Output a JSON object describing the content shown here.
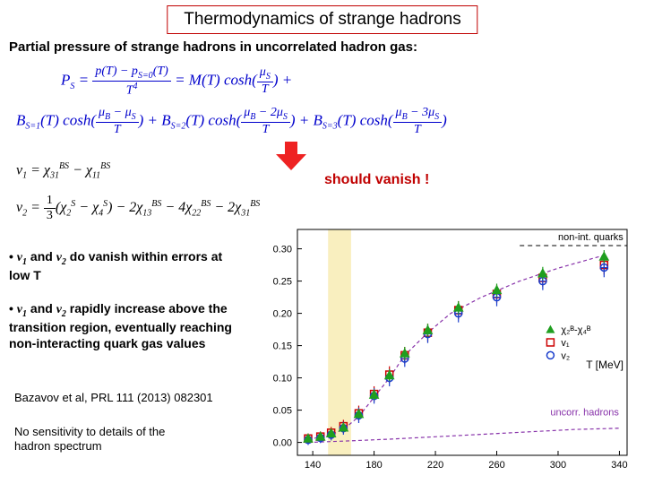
{
  "title": "Thermodynamics of strange hadrons",
  "subtitle": "Partial pressure of strange hadrons in uncorrelated hadron gas:",
  "should_vanish": "should vanish !",
  "bullet1_pre": "•   ",
  "bullet1_v1": "v",
  "bullet1_s1": "1",
  "bullet1_and": " and ",
  "bullet1_v2": "v",
  "bullet1_s2": "2",
  "bullet1_rest": " do vanish within errors at low T",
  "bullet2_pre": "•   ",
  "bullet2_v1": "v",
  "bullet2_s1": "1",
  "bullet2_and": " and ",
  "bullet2_v2": "v",
  "bullet2_s2": "2",
  "bullet2_rest": " rapidly increase above the transition region, eventually reaching non-interacting quark gas values",
  "citation": "Bazavov et al, PRL 111 (2013) 082301",
  "nosens": "No sensitivity to details of the hadron spectrum",
  "chart": {
    "type": "scatter",
    "background_color": "#ffffff",
    "xlim": [
      130,
      345
    ],
    "ylim": [
      -0.02,
      0.33
    ],
    "xticks": [
      140,
      180,
      220,
      260,
      300,
      340
    ],
    "yticks": [
      0.0,
      0.05,
      0.1,
      0.15,
      0.2,
      0.25,
      0.3
    ],
    "xlabel": "T [MeV]",
    "ylabel": "",
    "tick_fontsize": 11,
    "label_fontsize": 12,
    "band": {
      "xmin": 150,
      "xmax": 165,
      "color": "#f4e28a",
      "opacity": 0.55
    },
    "dashed_line": {
      "y": 0.305,
      "x0": 275,
      "x1": 345,
      "color": "#000000"
    },
    "dashed_label": "non-int. quarks",
    "reference_curves": {
      "chi_label": "χ₂ᴮ-χ₄ᴮ",
      "chi_curve": [
        {
          "x": 137,
          "y": 0.005
        },
        {
          "x": 145,
          "y": 0.008
        },
        {
          "x": 152,
          "y": 0.012
        },
        {
          "x": 160,
          "y": 0.02
        },
        {
          "x": 170,
          "y": 0.04
        },
        {
          "x": 180,
          "y": 0.07
        },
        {
          "x": 190,
          "y": 0.1
        },
        {
          "x": 200,
          "y": 0.135
        },
        {
          "x": 215,
          "y": 0.17
        },
        {
          "x": 230,
          "y": 0.2
        },
        {
          "x": 250,
          "y": 0.225
        },
        {
          "x": 275,
          "y": 0.25
        },
        {
          "x": 300,
          "y": 0.27
        },
        {
          "x": 330,
          "y": 0.29
        }
      ],
      "uncorr_label": "uncorr. hadrons",
      "uncorr_curve": [
        {
          "x": 137,
          "y": 0.0
        },
        {
          "x": 160,
          "y": 0.002
        },
        {
          "x": 190,
          "y": 0.005
        },
        {
          "x": 230,
          "y": 0.01
        },
        {
          "x": 270,
          "y": 0.015
        },
        {
          "x": 310,
          "y": 0.02
        },
        {
          "x": 340,
          "y": 0.022
        }
      ]
    },
    "series": [
      {
        "name": "v1",
        "marker": "square",
        "color": "#cc0000",
        "label": "v₁",
        "points": [
          {
            "x": 137,
            "y": 0.006,
            "ey": 0.008
          },
          {
            "x": 145,
            "y": 0.009,
            "ey": 0.008
          },
          {
            "x": 152,
            "y": 0.015,
            "ey": 0.009
          },
          {
            "x": 160,
            "y": 0.025,
            "ey": 0.01
          },
          {
            "x": 170,
            "y": 0.045,
            "ey": 0.012
          },
          {
            "x": 180,
            "y": 0.075,
            "ey": 0.012
          },
          {
            "x": 190,
            "y": 0.105,
            "ey": 0.013
          },
          {
            "x": 200,
            "y": 0.135,
            "ey": 0.013
          },
          {
            "x": 215,
            "y": 0.17,
            "ey": 0.014
          },
          {
            "x": 235,
            "y": 0.205,
            "ey": 0.014
          },
          {
            "x": 260,
            "y": 0.23,
            "ey": 0.014
          },
          {
            "x": 290,
            "y": 0.255,
            "ey": 0.014
          },
          {
            "x": 330,
            "y": 0.275,
            "ey": 0.015
          }
        ]
      },
      {
        "name": "v2",
        "marker": "circle",
        "color": "#1a3ecc",
        "label": "v₂",
        "points": [
          {
            "x": 137,
            "y": 0.004,
            "ey": 0.008
          },
          {
            "x": 145,
            "y": 0.007,
            "ey": 0.008
          },
          {
            "x": 152,
            "y": 0.012,
            "ey": 0.009
          },
          {
            "x": 160,
            "y": 0.022,
            "ey": 0.01
          },
          {
            "x": 170,
            "y": 0.042,
            "ey": 0.012
          },
          {
            "x": 180,
            "y": 0.072,
            "ey": 0.012
          },
          {
            "x": 190,
            "y": 0.1,
            "ey": 0.013
          },
          {
            "x": 200,
            "y": 0.13,
            "ey": 0.013
          },
          {
            "x": 215,
            "y": 0.168,
            "ey": 0.014
          },
          {
            "x": 235,
            "y": 0.2,
            "ey": 0.014
          },
          {
            "x": 260,
            "y": 0.225,
            "ey": 0.014
          },
          {
            "x": 290,
            "y": 0.25,
            "ey": 0.014
          },
          {
            "x": 330,
            "y": 0.271,
            "ey": 0.015
          }
        ]
      },
      {
        "name": "chi24",
        "marker": "triangle",
        "color": "#1f9e1f",
        "label": "χ₂ᴮ-χ₄ᴮ",
        "points": [
          {
            "x": 137,
            "y": 0.006,
            "ey": 0.004
          },
          {
            "x": 145,
            "y": 0.009,
            "ey": 0.004
          },
          {
            "x": 152,
            "y": 0.014,
            "ey": 0.005
          },
          {
            "x": 160,
            "y": 0.023,
            "ey": 0.006
          },
          {
            "x": 170,
            "y": 0.044,
            "ey": 0.007
          },
          {
            "x": 180,
            "y": 0.074,
            "ey": 0.008
          },
          {
            "x": 190,
            "y": 0.104,
            "ey": 0.009
          },
          {
            "x": 200,
            "y": 0.138,
            "ey": 0.01
          },
          {
            "x": 215,
            "y": 0.174,
            "ey": 0.01
          },
          {
            "x": 235,
            "y": 0.209,
            "ey": 0.01
          },
          {
            "x": 260,
            "y": 0.236,
            "ey": 0.01
          },
          {
            "x": 290,
            "y": 0.262,
            "ey": 0.01
          },
          {
            "x": 330,
            "y": 0.288,
            "ey": 0.01
          }
        ]
      }
    ]
  }
}
